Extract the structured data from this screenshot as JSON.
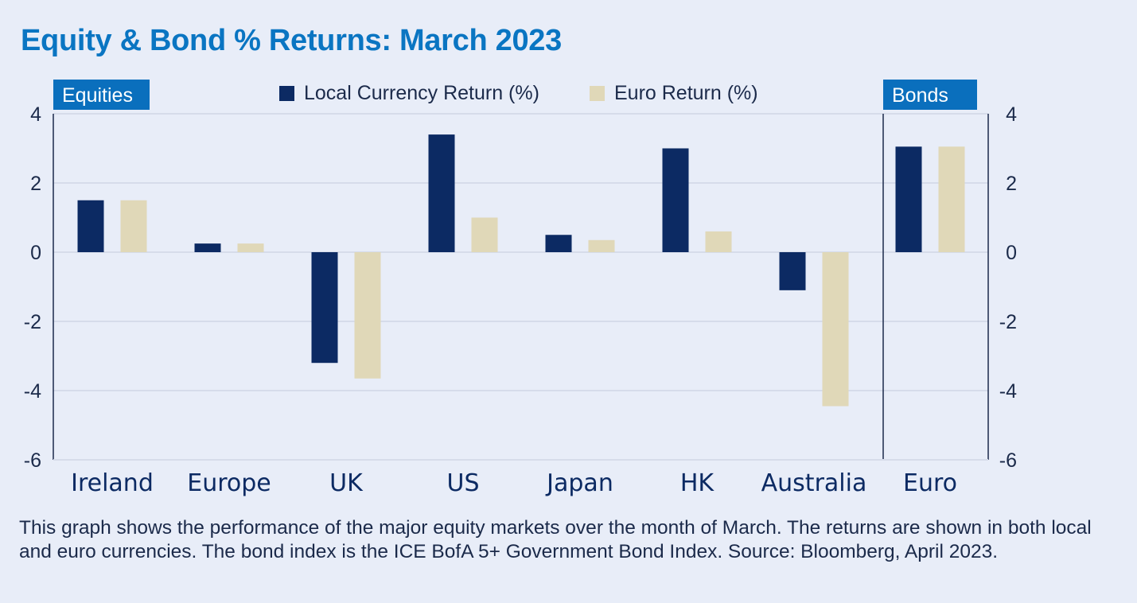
{
  "title": "Equity & Bond % Returns: March 2023",
  "tags": {
    "equities": "Equities",
    "bonds": "Bonds"
  },
  "colors": {
    "local": "#0c2a63",
    "euro": "#e0d8b8",
    "accent": "#0a6fbd",
    "gridline": "#d6dcea",
    "text": "#1b2a4a"
  },
  "chart_data": {
    "type": "bar",
    "categories": [
      "Ireland",
      "Europe",
      "UK",
      "US",
      "Japan",
      "HK",
      "Australia",
      "Euro"
    ],
    "series": [
      {
        "name": "Local Currency Return (%)",
        "values": [
          1.5,
          0.25,
          -3.2,
          3.4,
          0.5,
          3.0,
          -1.1,
          3.05
        ]
      },
      {
        "name": "Euro Return (%)",
        "values": [
          1.5,
          0.25,
          -3.65,
          1.0,
          0.35,
          0.6,
          -4.45,
          3.05
        ]
      }
    ],
    "ylim": [
      -6,
      4
    ],
    "yticks": [
      "4",
      "2",
      "0",
      "-2",
      "-4",
      "-6"
    ],
    "secondary_ylim": [
      -6,
      4
    ],
    "secondary_yticks": [
      "4",
      "2",
      "0",
      "-2",
      "-4",
      "-6"
    ],
    "legend_position": "top-center",
    "grid": true
  },
  "caption": "This graph shows the performance of the major equity markets over the month of March. The returns are shown in both local and euro currencies. The bond index is the ICE BofA 5+ Government Bond Index. Source: Bloomberg, April 2023."
}
